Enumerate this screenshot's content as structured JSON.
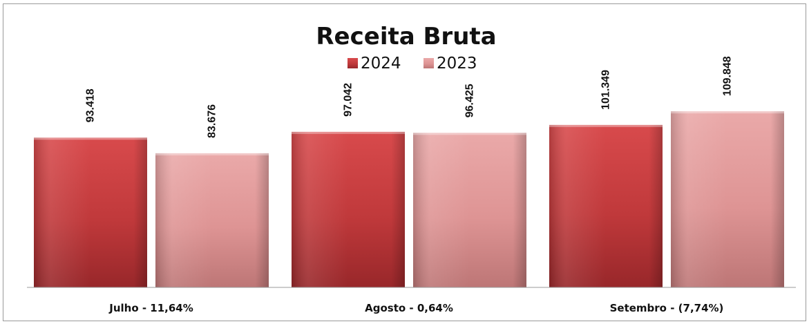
{
  "chart_data": {
    "type": "bar",
    "title": "Receita Bruta",
    "xlabel": "",
    "ylabel": "",
    "ylim": [
      0,
      125000
    ],
    "grid": false,
    "legend_position": "top-center",
    "categories": [
      "Julho - 11,64%",
      "Agosto - 0,64%",
      "Setembro - (7,74%)"
    ],
    "series": [
      {
        "name": "2024",
        "color": "#c0393b",
        "values": [
          93418,
          97042,
          101349
        ],
        "labels": [
          "93.418",
          "97.042",
          "101.349"
        ]
      },
      {
        "name": "2023",
        "color": "#e09a9a",
        "values": [
          83676,
          96425,
          109848
        ],
        "labels": [
          "83.676",
          "96.425",
          "109.848"
        ]
      }
    ]
  }
}
